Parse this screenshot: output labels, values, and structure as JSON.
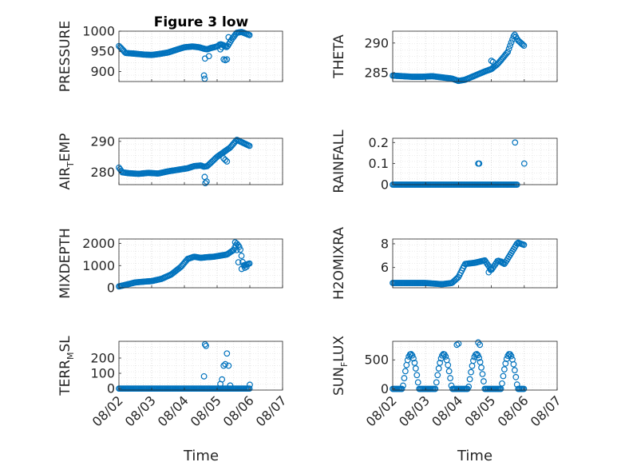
{
  "figure": {
    "title": "Figure 3 low",
    "time_label": "Time",
    "marker_color": "#0072BD"
  },
  "x_axis": {
    "ticks": [
      "08/02",
      "08/03",
      "08/04",
      "08/05",
      "08/06",
      "08/07"
    ],
    "xlim": [
      0,
      5
    ]
  },
  "chart_data": [
    {
      "type": "scatter",
      "ylabel": "PRESSURE",
      "ylim": [
        875,
        1000
      ],
      "yticks": [
        900,
        950,
        1000
      ],
      "knots_x": [
        0,
        0.08,
        0.2,
        0.5,
        0.75,
        1.0,
        1.2,
        1.5,
        1.8,
        2.0,
        2.25,
        2.45,
        2.62,
        2.7,
        2.8,
        3.0,
        3.1,
        3.2,
        3.3,
        3.45,
        3.6,
        3.75,
        4.0
      ],
      "knots_y": [
        963,
        957,
        946,
        944,
        942,
        941,
        943,
        947,
        955,
        960,
        962,
        960,
        956,
        955,
        958,
        962,
        968,
        965,
        960,
        980,
        996,
        998,
        990
      ],
      "extra_points": [
        [
          2.6,
          890
        ],
        [
          2.62,
          882
        ],
        [
          2.63,
          932
        ],
        [
          2.75,
          938
        ],
        [
          3.1,
          955
        ],
        [
          3.15,
          960
        ],
        [
          3.2,
          930
        ],
        [
          3.25,
          928
        ],
        [
          3.3,
          930
        ],
        [
          3.35,
          985
        ]
      ],
      "grid": true
    },
    {
      "type": "scatter",
      "ylabel": "THETA",
      "ylim": [
        283.5,
        292
      ],
      "yticks": [
        285,
        290
      ],
      "knots_x": [
        0,
        0.3,
        0.6,
        0.9,
        1.2,
        1.5,
        1.8,
        2.0,
        2.2,
        2.5,
        2.8,
        3.0,
        3.2,
        3.5,
        3.7,
        3.8,
        4.0
      ],
      "knots_y": [
        284.5,
        284.4,
        284.3,
        284.3,
        284.4,
        284.2,
        284.0,
        283.6,
        283.8,
        284.5,
        285.2,
        285.6,
        286.5,
        288.5,
        291.5,
        290.5,
        289.5
      ],
      "extra_points": [
        [
          3.0,
          287
        ],
        [
          3.05,
          286.8
        ]
      ],
      "grid": true
    },
    {
      "type": "scatter",
      "ylabel_main": "AIR",
      "ylabel_sub": "T",
      "ylabel_rest": "EMP",
      "ylim": [
        276,
        291
      ],
      "yticks": [
        280,
        290
      ],
      "knots_x": [
        0,
        0.1,
        0.3,
        0.6,
        0.9,
        1.2,
        1.5,
        1.8,
        2.1,
        2.3,
        2.5,
        2.6,
        2.7,
        2.8,
        3.0,
        3.2,
        3.4,
        3.6,
        3.8,
        4.0
      ],
      "knots_y": [
        281.5,
        280,
        279.7,
        279.5,
        279.8,
        279.6,
        280.3,
        280.8,
        281.3,
        282,
        282.2,
        281.8,
        282,
        283,
        285,
        286.5,
        288,
        290.5,
        289.5,
        288.5
      ],
      "extra_points": [
        [
          2.62,
          278.5
        ],
        [
          2.64,
          276.5
        ],
        [
          2.68,
          277
        ],
        [
          3.2,
          284.5
        ],
        [
          3.25,
          284
        ],
        [
          3.3,
          283.5
        ]
      ],
      "grid": true
    },
    {
      "type": "scatter",
      "ylabel": "RAINFALL",
      "ylim": [
        0,
        0.22
      ],
      "yticks": [
        0,
        0.1,
        0.2
      ],
      "knots_x": [
        0,
        3.8
      ],
      "knots_y": [
        0,
        0
      ],
      "extra_points": [
        [
          2.6,
          0.1
        ],
        [
          2.63,
          0.1
        ],
        [
          3.72,
          0.2
        ],
        [
          4.0,
          0.1
        ]
      ],
      "grid": true
    },
    {
      "type": "scatter",
      "ylabel": "MIXDEPTH",
      "ylim": [
        0,
        2200
      ],
      "yticks": [
        0,
        1000,
        2000
      ],
      "knots_x": [
        0,
        0.2,
        0.5,
        0.8,
        1.0,
        1.3,
        1.6,
        1.9,
        2.1,
        2.3,
        2.5,
        2.7,
        2.9,
        3.1,
        3.3,
        3.5,
        3.6,
        3.7,
        3.8,
        4.0
      ],
      "knots_y": [
        60,
        130,
        240,
        280,
        300,
        400,
        600,
        950,
        1300,
        1400,
        1350,
        1380,
        1400,
        1450,
        1500,
        1700,
        2000,
        1800,
        1000,
        1100
      ],
      "extra_points": [
        [
          3.55,
          2050
        ],
        [
          3.6,
          1700
        ],
        [
          3.65,
          1150
        ],
        [
          3.75,
          850
        ],
        [
          3.85,
          900
        ],
        [
          3.9,
          950
        ]
      ],
      "grid": true
    },
    {
      "type": "scatter",
      "ylabel": "H2OMIXRA",
      "ylim": [
        4.3,
        8.4
      ],
      "yticks": [
        6,
        8
      ],
      "knots_x": [
        0,
        0.5,
        1.0,
        1.5,
        1.8,
        2.0,
        2.2,
        2.5,
        2.8,
        3.0,
        3.2,
        3.4,
        3.6,
        3.8,
        4.0
      ],
      "knots_y": [
        4.7,
        4.7,
        4.7,
        4.6,
        4.7,
        5.2,
        6.3,
        6.4,
        6.6,
        5.8,
        6.6,
        6.3,
        7.2,
        8.1,
        7.9
      ],
      "extra_points": [
        [
          2.92,
          5.6
        ],
        [
          2.98,
          5.8
        ],
        [
          3.3,
          6.5
        ]
      ],
      "grid": true
    },
    {
      "type": "scatter",
      "ylabel_main": "TERR",
      "ylabel_sub": "M",
      "ylabel_rest": "SL",
      "ylim": [
        -10,
        310
      ],
      "yticks": [
        0,
        100,
        200
      ],
      "knots_x": [
        0,
        4.0
      ],
      "knots_y": [
        0,
        0
      ],
      "extra_points": [
        [
          2.6,
          80
        ],
        [
          2.63,
          290
        ],
        [
          2.66,
          280
        ],
        [
          3.1,
          30
        ],
        [
          3.15,
          60
        ],
        [
          3.2,
          150
        ],
        [
          3.25,
          160
        ],
        [
          3.3,
          230
        ],
        [
          3.35,
          150
        ],
        [
          3.4,
          20
        ],
        [
          4.0,
          25
        ]
      ],
      "grid": true
    },
    {
      "type": "scatter",
      "ylabel_main": "SUN",
      "ylabel_sub": "F",
      "ylabel_rest": "LUX",
      "ylim": [
        -20,
        820
      ],
      "yticks": [
        0,
        500
      ],
      "diurnal": true,
      "peak": 600,
      "extra_points": [
        [
          1.95,
          760
        ],
        [
          2.0,
          780
        ],
        [
          2.6,
          800
        ],
        [
          2.65,
          760
        ]
      ],
      "grid": true
    }
  ]
}
